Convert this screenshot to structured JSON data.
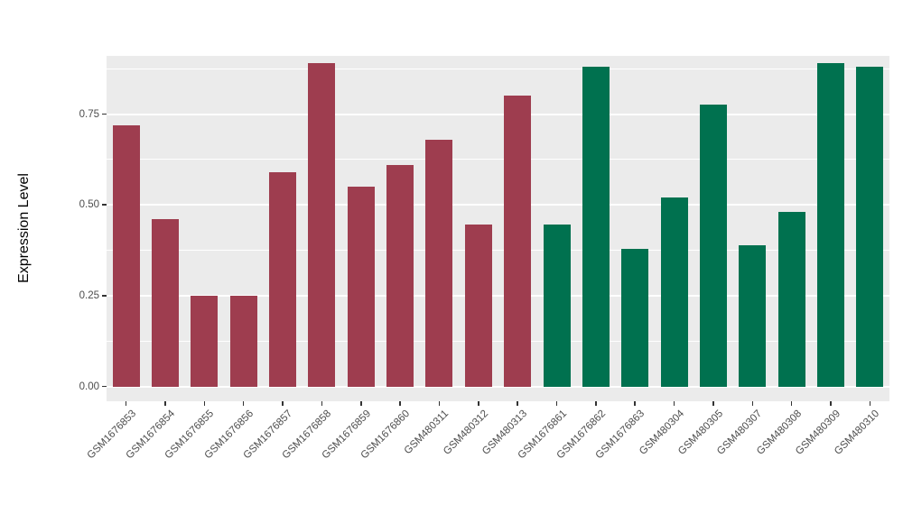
{
  "chart_data": {
    "type": "bar",
    "title": "",
    "xlabel": "",
    "ylabel": "Expression Level",
    "categories": [
      "GSM1676853",
      "GSM1676854",
      "GSM1676855",
      "GSM1676856",
      "GSM1676857",
      "GSM1676858",
      "GSM1676859",
      "GSM1676860",
      "GSM480311",
      "GSM480312",
      "GSM480313",
      "GSM1676861",
      "GSM1676862",
      "GSM1676863",
      "GSM480304",
      "GSM480305",
      "GSM480307",
      "GSM480308",
      "GSM480309",
      "GSM480310"
    ],
    "values": [
      0.72,
      0.46,
      0.25,
      0.25,
      0.59,
      0.89,
      0.55,
      0.61,
      0.68,
      0.445,
      0.8,
      0.445,
      0.88,
      0.38,
      0.52,
      0.775,
      0.39,
      0.48,
      0.89,
      0.88
    ],
    "colors": [
      "#9e3d4f",
      "#9e3d4f",
      "#9e3d4f",
      "#9e3d4f",
      "#9e3d4f",
      "#9e3d4f",
      "#9e3d4f",
      "#9e3d4f",
      "#9e3d4f",
      "#9e3d4f",
      "#9e3d4f",
      "#00714f",
      "#00714f",
      "#00714f",
      "#00714f",
      "#00714f",
      "#00714f",
      "#00714f",
      "#00714f",
      "#00714f"
    ],
    "group_colors": {
      "group1": "#9e3d4f",
      "group2": "#00714f"
    },
    "yticks": [
      0,
      0.25,
      0.5,
      0.75
    ],
    "ytick_labels": [
      "0.00",
      "0.25",
      "0.50",
      "0.75"
    ],
    "minor_ticks": [
      0.125,
      0.375,
      0.625,
      0.875
    ],
    "ylim": [
      -0.04,
      0.91
    ],
    "panel_background": "#ebebeb",
    "grid_color": "#ffffff",
    "legend": "none",
    "grid": "on"
  }
}
